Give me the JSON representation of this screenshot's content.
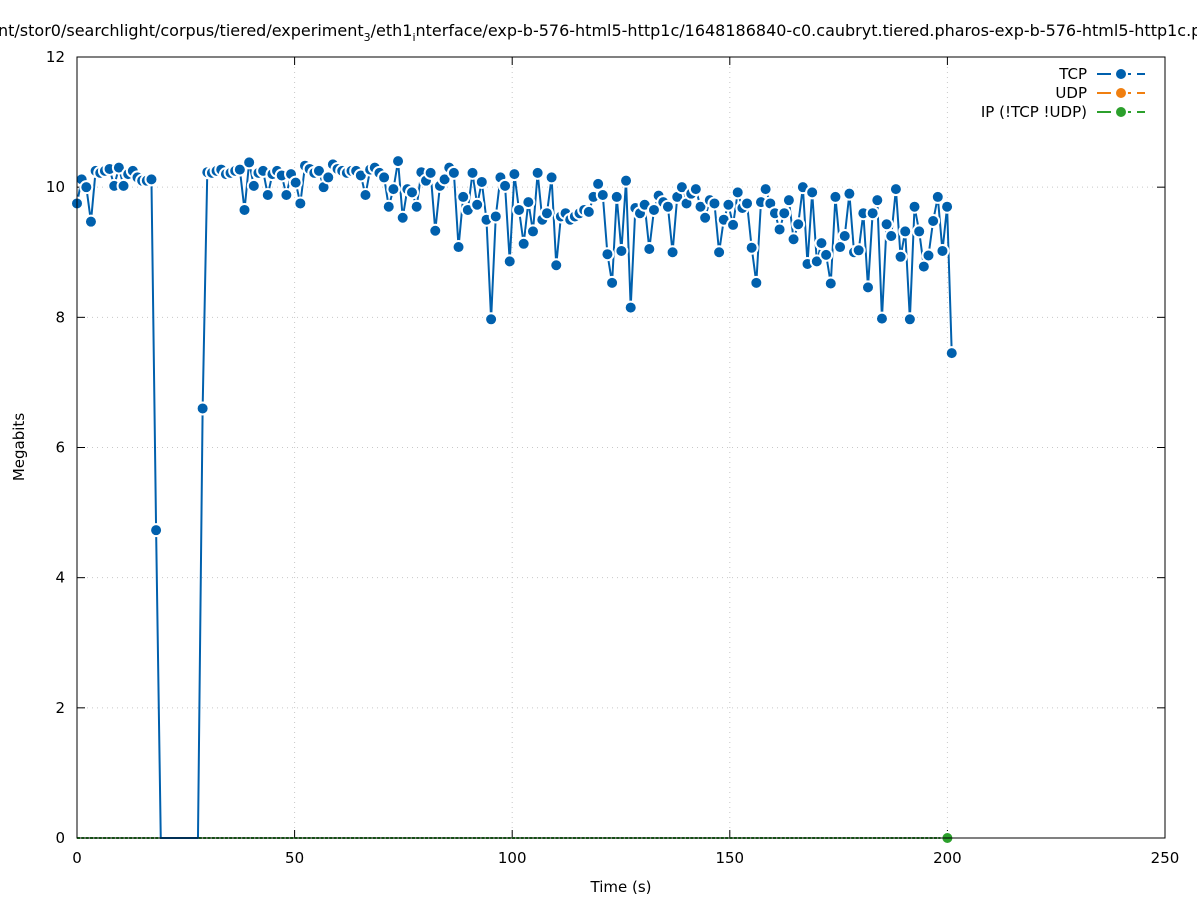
{
  "chart_data": {
    "type": "line",
    "title_parts": {
      "a": "nt/stor0/searchlight/corpus/tiered/experiment",
      "sub1": "3",
      "b": "/eth1",
      "sub2": "i",
      "c": "nterface/exp-b-576-html5-http1c/1648186840-c0.caubryt.tiered.pharos-exp-b-576-html5-http1c.p"
    },
    "xlabel": "Time (s)",
    "ylabel": "Megabits",
    "xlim": [
      0,
      250
    ],
    "ylim": [
      0,
      12
    ],
    "xticks": [
      "0",
      "50",
      "100",
      "150",
      "200",
      "250"
    ],
    "yticks": [
      "0",
      "2",
      "4",
      "6",
      "8",
      "10",
      "12"
    ],
    "grid": true,
    "legend_position": "top-right",
    "series": [
      {
        "name": "TCP",
        "color": "#0060ad",
        "x_start": 0,
        "x_end": 201,
        "values": [
          9.75,
          10.12,
          10.0,
          9.47,
          10.25,
          10.22,
          10.25,
          10.28,
          10.02,
          10.3,
          10.02,
          10.2,
          10.25,
          10.15,
          10.1,
          10.1,
          10.12,
          4.73,
          0,
          0,
          0,
          0,
          0,
          0,
          0,
          0,
          0,
          6.6,
          10.23,
          10.22,
          10.25,
          10.27,
          10.2,
          10.22,
          10.25,
          10.27,
          9.65,
          10.38,
          10.02,
          10.22,
          10.25,
          9.88,
          10.2,
          10.25,
          10.18,
          9.88,
          10.2,
          10.07,
          9.75,
          10.33,
          10.28,
          10.22,
          10.25,
          10.0,
          10.15,
          10.35,
          10.28,
          10.25,
          10.22,
          10.25,
          10.25,
          10.18,
          9.88,
          10.27,
          10.3,
          10.22,
          10.15,
          9.7,
          9.97,
          10.4,
          9.53,
          9.97,
          9.92,
          9.7,
          10.23,
          10.1,
          10.22,
          9.33,
          10.02,
          10.12,
          10.3,
          10.22,
          9.08,
          9.85,
          9.65,
          10.22,
          9.73,
          10.08,
          9.5,
          7.97,
          9.55,
          10.15,
          10.02,
          8.86,
          10.2,
          9.65,
          9.13,
          9.77,
          9.32,
          10.22,
          9.5,
          9.6,
          10.15,
          8.8,
          9.55,
          9.6,
          9.5,
          9.55,
          9.6,
          9.65,
          9.62,
          9.85,
          10.05,
          9.88,
          8.97,
          8.53,
          9.85,
          9.02,
          10.1,
          8.15,
          9.68,
          9.6,
          9.73,
          9.05,
          9.65,
          9.87,
          9.77,
          9.7,
          9.0,
          9.85,
          10.0,
          9.75,
          9.9,
          9.97,
          9.7,
          9.53,
          9.8,
          9.75,
          9.0,
          9.5,
          9.73,
          9.42,
          9.92,
          9.68,
          9.75,
          9.07,
          8.53,
          9.77,
          9.97,
          9.75,
          9.6,
          9.35,
          9.6,
          9.8,
          9.2,
          9.43,
          10.0,
          8.82,
          9.92,
          8.86,
          9.14,
          8.96,
          8.52,
          9.85,
          9.08,
          9.25,
          9.9,
          9.0,
          9.03,
          9.6,
          8.46,
          9.6,
          9.8,
          7.98,
          9.43,
          9.25,
          9.97,
          8.93,
          9.32,
          7.97,
          9.7,
          9.32,
          8.78,
          8.95,
          9.48,
          9.85,
          9.02,
          9.7,
          7.45
        ]
      },
      {
        "name": "UDP",
        "color": "#f07f10",
        "values": []
      },
      {
        "name": "IP (!TCP  !UDP)",
        "color": "#2ca02c",
        "x_start": 0,
        "x_end": 200,
        "values_constant": 0,
        "marker_at": [
          200,
          0
        ]
      }
    ]
  }
}
